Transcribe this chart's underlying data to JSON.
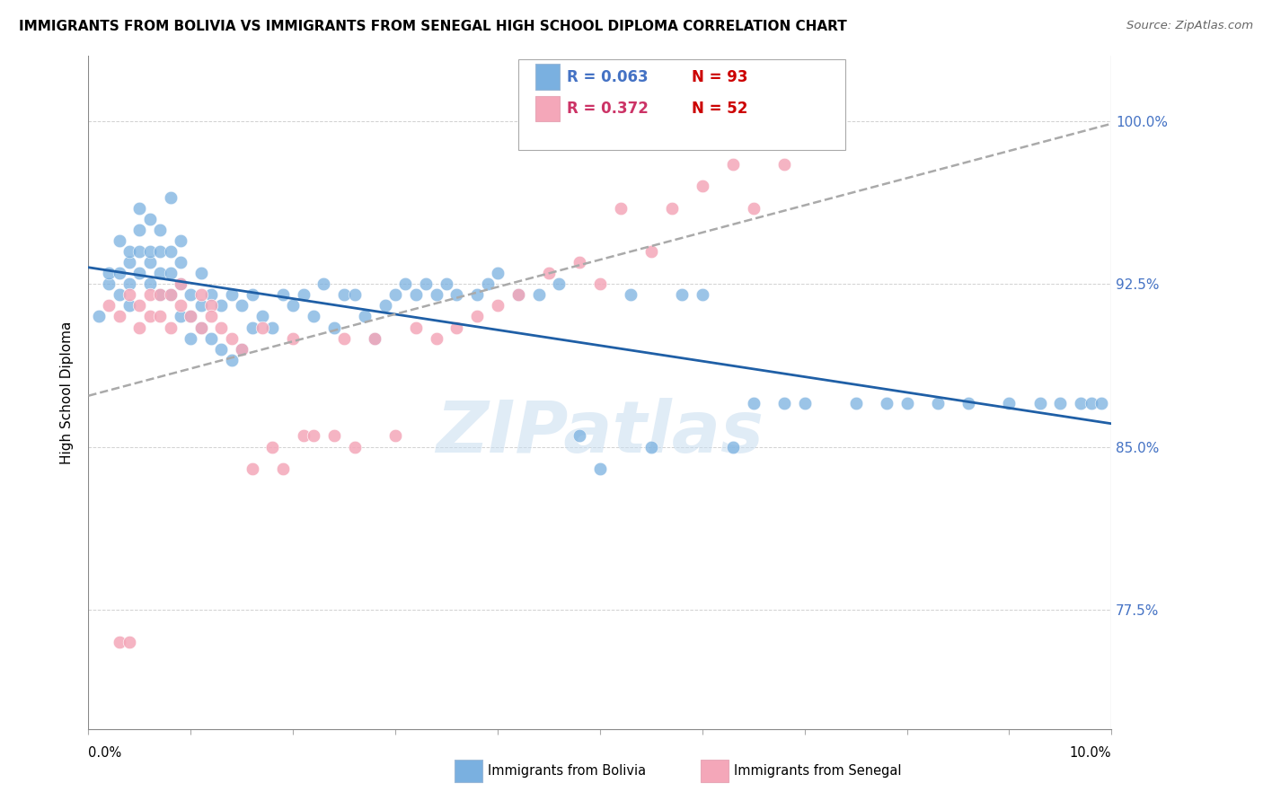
{
  "title": "IMMIGRANTS FROM BOLIVIA VS IMMIGRANTS FROM SENEGAL HIGH SCHOOL DIPLOMA CORRELATION CHART",
  "source": "Source: ZipAtlas.com",
  "ylabel": "High School Diploma",
  "ytick_labels": [
    "100.0%",
    "92.5%",
    "85.0%",
    "77.5%"
  ],
  "ytick_values": [
    1.0,
    0.925,
    0.85,
    0.775
  ],
  "xlim": [
    0.0,
    0.1
  ],
  "ylim": [
    0.72,
    1.03
  ],
  "bolivia_color": "#7ab0e0",
  "senegal_color": "#f4a7b9",
  "bolivia_line_color": "#1f5fa6",
  "senegal_line_color": "#aaaaaa",
  "bolivia_R": 0.063,
  "bolivia_N": 93,
  "senegal_R": 0.372,
  "senegal_N": 52,
  "bolivia_x": [
    0.001,
    0.002,
    0.002,
    0.003,
    0.003,
    0.003,
    0.004,
    0.004,
    0.004,
    0.004,
    0.005,
    0.005,
    0.005,
    0.005,
    0.006,
    0.006,
    0.006,
    0.006,
    0.007,
    0.007,
    0.007,
    0.007,
    0.008,
    0.008,
    0.008,
    0.008,
    0.009,
    0.009,
    0.009,
    0.009,
    0.01,
    0.01,
    0.01,
    0.011,
    0.011,
    0.011,
    0.012,
    0.012,
    0.013,
    0.013,
    0.014,
    0.014,
    0.015,
    0.015,
    0.016,
    0.016,
    0.017,
    0.018,
    0.019,
    0.02,
    0.021,
    0.022,
    0.023,
    0.024,
    0.025,
    0.026,
    0.027,
    0.028,
    0.029,
    0.03,
    0.031,
    0.032,
    0.033,
    0.034,
    0.035,
    0.036,
    0.038,
    0.039,
    0.04,
    0.042,
    0.044,
    0.046,
    0.048,
    0.05,
    0.053,
    0.055,
    0.058,
    0.06,
    0.063,
    0.065,
    0.068,
    0.07,
    0.075,
    0.078,
    0.08,
    0.083,
    0.086,
    0.09,
    0.093,
    0.095,
    0.097,
    0.098,
    0.099
  ],
  "bolivia_y": [
    0.91,
    0.925,
    0.93,
    0.92,
    0.93,
    0.945,
    0.915,
    0.925,
    0.935,
    0.94,
    0.93,
    0.94,
    0.95,
    0.96,
    0.925,
    0.935,
    0.94,
    0.955,
    0.92,
    0.93,
    0.94,
    0.95,
    0.92,
    0.93,
    0.94,
    0.965,
    0.91,
    0.925,
    0.935,
    0.945,
    0.9,
    0.91,
    0.92,
    0.905,
    0.915,
    0.93,
    0.9,
    0.92,
    0.895,
    0.915,
    0.89,
    0.92,
    0.895,
    0.915,
    0.905,
    0.92,
    0.91,
    0.905,
    0.92,
    0.915,
    0.92,
    0.91,
    0.925,
    0.905,
    0.92,
    0.92,
    0.91,
    0.9,
    0.915,
    0.92,
    0.925,
    0.92,
    0.925,
    0.92,
    0.925,
    0.92,
    0.92,
    0.925,
    0.93,
    0.92,
    0.92,
    0.925,
    0.855,
    0.84,
    0.92,
    0.85,
    0.92,
    0.92,
    0.85,
    0.87,
    0.87,
    0.87,
    0.87,
    0.87,
    0.87,
    0.87,
    0.87,
    0.87,
    0.87,
    0.87,
    0.87,
    0.87,
    0.87
  ],
  "senegal_x": [
    0.002,
    0.003,
    0.003,
    0.004,
    0.004,
    0.005,
    0.005,
    0.006,
    0.006,
    0.007,
    0.007,
    0.008,
    0.008,
    0.009,
    0.009,
    0.01,
    0.011,
    0.011,
    0.012,
    0.012,
    0.013,
    0.014,
    0.015,
    0.016,
    0.017,
    0.018,
    0.019,
    0.02,
    0.021,
    0.022,
    0.024,
    0.025,
    0.026,
    0.028,
    0.03,
    0.032,
    0.034,
    0.036,
    0.038,
    0.04,
    0.042,
    0.045,
    0.048,
    0.05,
    0.052,
    0.055,
    0.057,
    0.06,
    0.063,
    0.065,
    0.068,
    0.072
  ],
  "senegal_y": [
    0.915,
    0.76,
    0.91,
    0.92,
    0.76,
    0.915,
    0.905,
    0.92,
    0.91,
    0.92,
    0.91,
    0.92,
    0.905,
    0.925,
    0.915,
    0.91,
    0.92,
    0.905,
    0.915,
    0.91,
    0.905,
    0.9,
    0.895,
    0.84,
    0.905,
    0.85,
    0.84,
    0.9,
    0.855,
    0.855,
    0.855,
    0.9,
    0.85,
    0.9,
    0.855,
    0.905,
    0.9,
    0.905,
    0.91,
    0.915,
    0.92,
    0.93,
    0.935,
    0.925,
    0.96,
    0.94,
    0.96,
    0.97,
    0.98,
    0.96,
    0.98,
    0.99
  ]
}
